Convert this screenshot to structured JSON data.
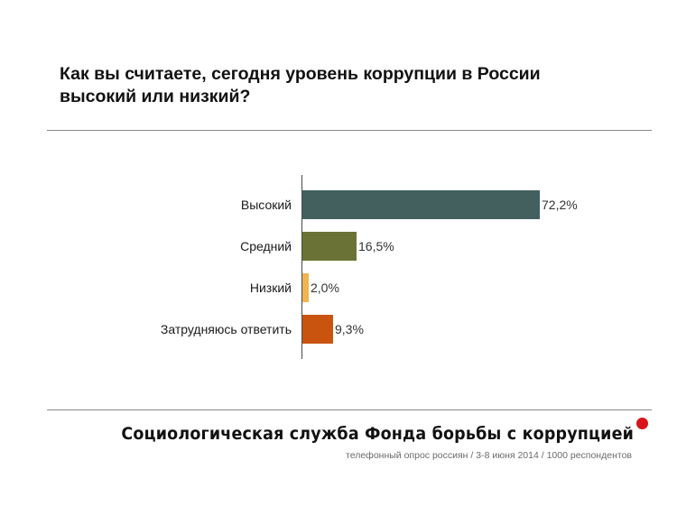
{
  "header": {
    "title_line1": "Как вы считаете, сегодня уровень коррупции в России",
    "title_line2": "высокий или низкий?"
  },
  "chart_data": {
    "type": "bar",
    "orientation": "horizontal",
    "title": "Как вы считаете, сегодня уровень коррупции в России высокий или низкий?",
    "xlabel": "",
    "ylabel": "",
    "categories": [
      "Высокий",
      "Средний",
      "Низкий",
      "Затрудняюсь ответить"
    ],
    "values": [
      72.2,
      16.5,
      2.0,
      9.3
    ],
    "value_labels": [
      "72,2%",
      "16,5%",
      "2,0%",
      "9,3%"
    ],
    "colors": [
      "#43605F",
      "#6B7236",
      "#F0B450",
      "#C95410"
    ],
    "unit": "%",
    "grid": false,
    "legend": null,
    "xlim": [
      0,
      100
    ]
  },
  "footer": {
    "title": "Социологическая служба Фонда борьбы с коррупцией",
    "subtitle": "телефонный опрос россиян / 3-8 июня 2014 / 1000 респондентов",
    "dot_color": "#D9141B"
  }
}
